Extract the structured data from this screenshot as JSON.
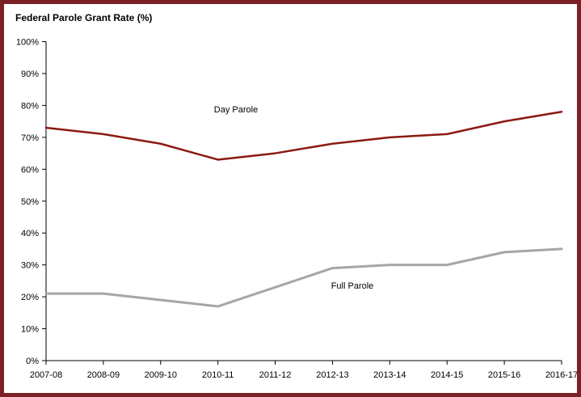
{
  "panel": {
    "border_color": "#7b2125",
    "background": "#ffffff"
  },
  "chart_data": {
    "type": "line",
    "title": "Federal Parole Grant Rate (%)",
    "categories": [
      "2007-08",
      "2008-09",
      "2009-10",
      "2010-11",
      "2011-12",
      "2012-13",
      "2013-14",
      "2014-15",
      "2015-16",
      "2016-17"
    ],
    "series": [
      {
        "name": "Day Parole",
        "color": "#8b1a10",
        "stroke_width": 2.5,
        "values": [
          73,
          71,
          68,
          63,
          65,
          68,
          70,
          71,
          75,
          78
        ],
        "annotation": {
          "text": "Day Parole",
          "x": 287,
          "y": 134
        }
      },
      {
        "name": "Full Parole",
        "color": "#a6a6a6",
        "stroke_width": 3,
        "values": [
          21,
          21,
          19,
          17,
          23,
          29,
          30,
          30,
          34,
          35
        ],
        "annotation": {
          "text": "Full Parole",
          "x": 431,
          "y": 352
        }
      }
    ],
    "xlabel": "",
    "ylabel": "",
    "ylim": [
      0,
      100
    ],
    "y_tick_step": 10,
    "y_tick_suffix": "%",
    "grid": false,
    "legend_position": "inline-annotations",
    "axis_color": "#000000",
    "tick_label_color": "#000000",
    "tick_font_size": 11
  }
}
